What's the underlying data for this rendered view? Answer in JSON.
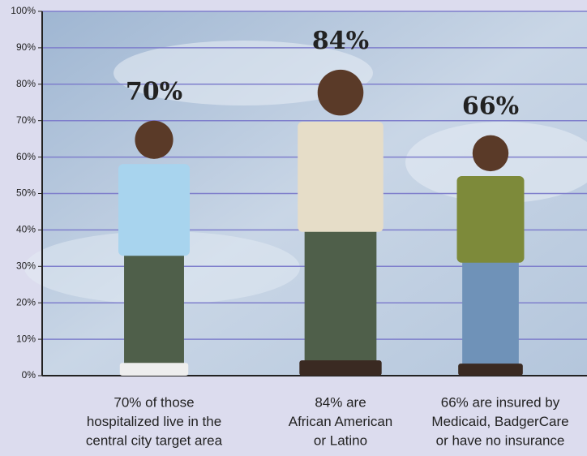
{
  "chart_data": {
    "type": "bar",
    "categories": [
      [
        "70% of those",
        "hospitalized live in the",
        "central city target area"
      ],
      [
        "84% are",
        "African American",
        "or Latino"
      ],
      [
        "66% are insured by",
        "Medicaid, BadgerCare",
        "or have no insurance"
      ]
    ],
    "values": [
      70,
      84,
      66
    ],
    "value_labels": [
      "70%",
      "84%",
      "66%"
    ],
    "colors": [
      "#a8d4ee",
      "#e6ddc8",
      "#7d8a3a"
    ],
    "ylim": [
      0,
      100
    ],
    "yticks": [
      {
        "value": 0,
        "label": "0%"
      },
      {
        "value": 10,
        "label": "10%"
      },
      {
        "value": 20,
        "label": "20%"
      },
      {
        "value": 30,
        "label": "30%"
      },
      {
        "value": 40,
        "label": "40%"
      },
      {
        "value": 50,
        "label": "50%"
      },
      {
        "value": 60,
        "label": "60%"
      },
      {
        "value": 70,
        "label": "70%"
      },
      {
        "value": 80,
        "label": "80%"
      },
      {
        "value": 90,
        "label": "90%"
      },
      {
        "value": 100,
        "label": "100%"
      }
    ],
    "grid": true
  }
}
